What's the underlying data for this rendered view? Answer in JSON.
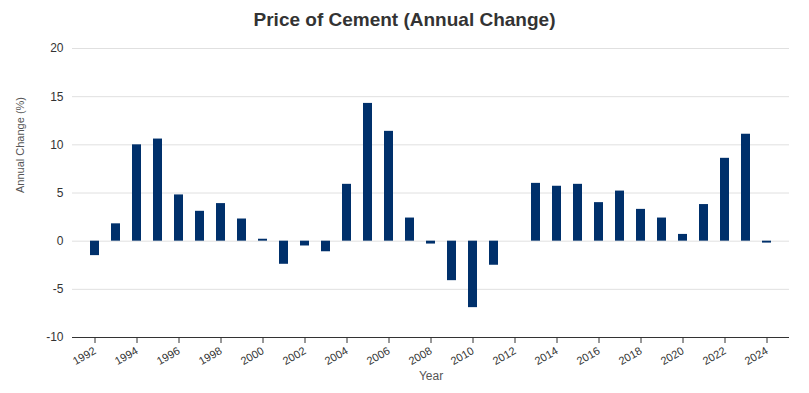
{
  "chart_data": {
    "type": "bar",
    "title": "Price of Cement (Annual Change)",
    "x_label": "Year",
    "y_label": "Annual Change (%)",
    "categories": [
      "1992",
      null,
      "1994",
      null,
      "1996",
      null,
      "1998",
      null,
      "2000",
      null,
      "2002",
      null,
      "2004",
      null,
      "2006",
      null,
      "2008",
      null,
      "2010",
      null,
      "2012",
      null,
      "2014",
      null,
      "2016",
      null,
      "2018",
      null,
      "2020",
      null,
      "2022",
      null,
      "2024"
    ],
    "values": [
      -1.5,
      1.8,
      10.0,
      10.6,
      4.8,
      3.1,
      3.9,
      2.3,
      0.2,
      -2.4,
      -0.5,
      -1.1,
      5.9,
      14.3,
      11.4,
      2.4,
      -0.3,
      -4.1,
      -6.9,
      -2.5,
      0,
      6.0,
      5.7,
      5.9,
      4.0,
      5.2,
      3.3,
      2.4,
      0.7,
      3.8,
      8.6,
      11.1,
      -0.2
    ],
    "color": "#00306b",
    "ylim": [
      -10,
      20
    ],
    "yticks": [
      -10,
      -5,
      0,
      5,
      10,
      15,
      20
    ],
    "grid": true
  }
}
